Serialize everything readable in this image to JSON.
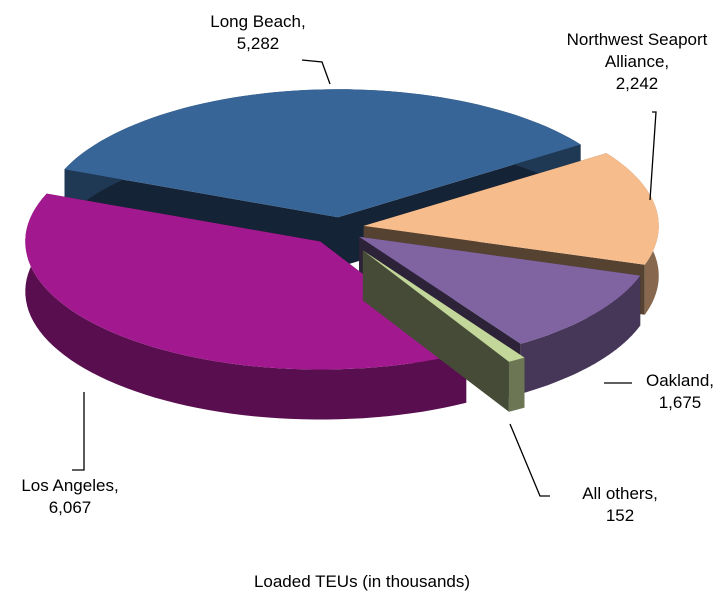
{
  "chart_data": {
    "type": "pie",
    "title": "Loaded TEUs (in thousands)",
    "categories": [
      "Long Beach,",
      "Northwest Seaport Alliance,",
      "Oakland,",
      "All others,",
      "Los Angeles,"
    ],
    "values": [
      5282,
      2242,
      1675,
      152,
      6067
    ],
    "value_labels": [
      "5,282",
      "2,242",
      "1,675",
      "152",
      "6,067"
    ],
    "colors": [
      "#386597",
      "#f6bc8c",
      "#8064a2",
      "#c4d79b",
      "#a2198f"
    ]
  }
}
